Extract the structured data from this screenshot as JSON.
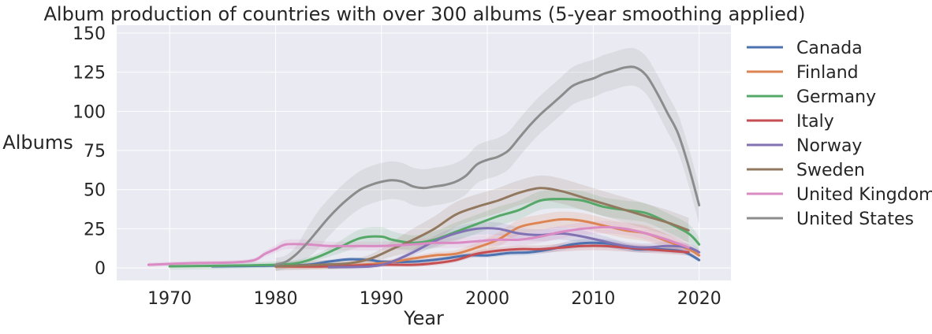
{
  "chart_data": {
    "type": "line",
    "title": "Album production of countries with over 300 albums (5-year smoothing applied)",
    "xlabel": "Year",
    "ylabel": "Albums",
    "xlim": [
      1965,
      2023
    ],
    "ylim": [
      -8,
      155
    ],
    "xticks": [
      1970,
      1980,
      1990,
      2000,
      2010,
      2020
    ],
    "yticks": [
      0,
      25,
      50,
      75,
      100,
      125,
      150
    ],
    "grid": true,
    "background": "#eaeaf2",
    "grid_color": "#ffffff",
    "legend_position": "outside-right",
    "confidence_bands": true,
    "series": [
      {
        "name": "Canada",
        "color": "#4c72b0",
        "points": [
          [
            1974,
            1
          ],
          [
            1980,
            1.5
          ],
          [
            1983,
            2
          ],
          [
            1985,
            4
          ],
          [
            1987,
            5.5
          ],
          [
            1989,
            5
          ],
          [
            1990,
            4
          ],
          [
            1993,
            4
          ],
          [
            1996,
            6
          ],
          [
            1998,
            8
          ],
          [
            2000,
            8
          ],
          [
            2002,
            9.5
          ],
          [
            2004,
            10
          ],
          [
            2006,
            12
          ],
          [
            2008,
            15
          ],
          [
            2010,
            16
          ],
          [
            2012,
            15
          ],
          [
            2014,
            12
          ],
          [
            2016,
            12
          ],
          [
            2018,
            11
          ],
          [
            2019,
            9
          ],
          [
            2020,
            5
          ]
        ],
        "band": 3.5
      },
      {
        "name": "Finland",
        "color": "#dd8452",
        "points": [
          [
            1980,
            1
          ],
          [
            1985,
            1
          ],
          [
            1990,
            3
          ],
          [
            1993,
            6
          ],
          [
            1995,
            8
          ],
          [
            1997,
            9
          ],
          [
            1999,
            13
          ],
          [
            2001,
            18
          ],
          [
            2003,
            26
          ],
          [
            2005,
            29
          ],
          [
            2007,
            31
          ],
          [
            2009,
            30
          ],
          [
            2011,
            27
          ],
          [
            2013,
            24
          ],
          [
            2015,
            22
          ],
          [
            2017,
            17
          ],
          [
            2019,
            12
          ],
          [
            2020,
            8
          ]
        ],
        "band": 5
      },
      {
        "name": "Germany",
        "color": "#55a868",
        "points": [
          [
            1970,
            1
          ],
          [
            1976,
            1.5
          ],
          [
            1980,
            2
          ],
          [
            1982,
            3
          ],
          [
            1984,
            7
          ],
          [
            1986,
            13
          ],
          [
            1988,
            19
          ],
          [
            1990,
            20
          ],
          [
            1991,
            18
          ],
          [
            1993,
            16
          ],
          [
            1995,
            18
          ],
          [
            1997,
            23
          ],
          [
            1999,
            28
          ],
          [
            2001,
            33
          ],
          [
            2003,
            37
          ],
          [
            2005,
            43
          ],
          [
            2007,
            44
          ],
          [
            2009,
            43
          ],
          [
            2011,
            39
          ],
          [
            2013,
            37
          ],
          [
            2015,
            35
          ],
          [
            2017,
            29
          ],
          [
            2019,
            22
          ],
          [
            2020,
            15
          ]
        ],
        "band": 6
      },
      {
        "name": "Italy",
        "color": "#c44e52",
        "points": [
          [
            1980,
            1
          ],
          [
            1985,
            1
          ],
          [
            1990,
            2
          ],
          [
            1993,
            2
          ],
          [
            1995,
            3
          ],
          [
            1997,
            5
          ],
          [
            1999,
            9
          ],
          [
            2001,
            11
          ],
          [
            2003,
            12
          ],
          [
            2005,
            12
          ],
          [
            2007,
            13
          ],
          [
            2009,
            14
          ],
          [
            2011,
            14
          ],
          [
            2013,
            13
          ],
          [
            2015,
            12
          ],
          [
            2017,
            11
          ],
          [
            2019,
            10
          ]
        ],
        "band": 4
      },
      {
        "name": "Norway",
        "color": "#8172b3",
        "points": [
          [
            1985,
            0.5
          ],
          [
            1989,
            1
          ],
          [
            1991,
            4
          ],
          [
            1993,
            10
          ],
          [
            1995,
            17
          ],
          [
            1997,
            22
          ],
          [
            1999,
            25
          ],
          [
            2001,
            25
          ],
          [
            2003,
            22
          ],
          [
            2005,
            21
          ],
          [
            2007,
            22
          ],
          [
            2009,
            20
          ],
          [
            2011,
            17
          ],
          [
            2013,
            14
          ],
          [
            2015,
            13
          ],
          [
            2017,
            14
          ],
          [
            2019,
            13
          ],
          [
            2020,
            10
          ]
        ],
        "band": 4
      },
      {
        "name": "Sweden",
        "color": "#937860",
        "points": [
          [
            1980,
            1
          ],
          [
            1984,
            2
          ],
          [
            1987,
            3
          ],
          [
            1989,
            6
          ],
          [
            1991,
            12
          ],
          [
            1993,
            18
          ],
          [
            1995,
            25
          ],
          [
            1997,
            34
          ],
          [
            1999,
            39
          ],
          [
            2001,
            43
          ],
          [
            2003,
            48
          ],
          [
            2005,
            51
          ],
          [
            2007,
            49
          ],
          [
            2009,
            45
          ],
          [
            2011,
            41
          ],
          [
            2013,
            37
          ],
          [
            2015,
            33
          ],
          [
            2017,
            29
          ],
          [
            2019,
            24
          ]
        ],
        "band": 8
      },
      {
        "name": "United Kingdom",
        "color": "#da8bc3",
        "points": [
          [
            1968,
            2
          ],
          [
            1972,
            3
          ],
          [
            1976,
            3.5
          ],
          [
            1978,
            5
          ],
          [
            1979,
            9
          ],
          [
            1980,
            12
          ],
          [
            1981,
            15
          ],
          [
            1983,
            15
          ],
          [
            1985,
            14
          ],
          [
            1988,
            14
          ],
          [
            1990,
            14
          ],
          [
            1993,
            15
          ],
          [
            1995,
            16
          ],
          [
            1997,
            16
          ],
          [
            1999,
            17
          ],
          [
            2001,
            18
          ],
          [
            2003,
            18
          ],
          [
            2005,
            20
          ],
          [
            2007,
            23
          ],
          [
            2009,
            25
          ],
          [
            2011,
            26
          ],
          [
            2013,
            25
          ],
          [
            2015,
            22
          ],
          [
            2017,
            18
          ],
          [
            2019,
            13
          ]
        ],
        "band": 4
      },
      {
        "name": "United States",
        "color": "#8c8c8c",
        "points": [
          [
            1980,
            2
          ],
          [
            1981,
            4
          ],
          [
            1982,
            9
          ],
          [
            1983,
            16
          ],
          [
            1984,
            24
          ],
          [
            1985,
            32
          ],
          [
            1986,
            39
          ],
          [
            1987,
            45
          ],
          [
            1988,
            50
          ],
          [
            1989,
            53
          ],
          [
            1990,
            55
          ],
          [
            1991,
            56
          ],
          [
            1992,
            55
          ],
          [
            1993,
            52
          ],
          [
            1994,
            51
          ],
          [
            1995,
            52
          ],
          [
            1996,
            53
          ],
          [
            1997,
            55
          ],
          [
            1998,
            59
          ],
          [
            1999,
            66
          ],
          [
            2000,
            69
          ],
          [
            2001,
            71
          ],
          [
            2002,
            75
          ],
          [
            2003,
            83
          ],
          [
            2004,
            91
          ],
          [
            2005,
            98
          ],
          [
            2006,
            104
          ],
          [
            2007,
            110
          ],
          [
            2008,
            116
          ],
          [
            2009,
            119
          ],
          [
            2010,
            121
          ],
          [
            2011,
            124
          ],
          [
            2012,
            126
          ],
          [
            2013,
            128
          ],
          [
            2014,
            128
          ],
          [
            2015,
            123
          ],
          [
            2016,
            112
          ],
          [
            2017,
            99
          ],
          [
            2018,
            86
          ],
          [
            2019,
            65
          ],
          [
            2020,
            40
          ]
        ],
        "band": 12
      }
    ]
  }
}
